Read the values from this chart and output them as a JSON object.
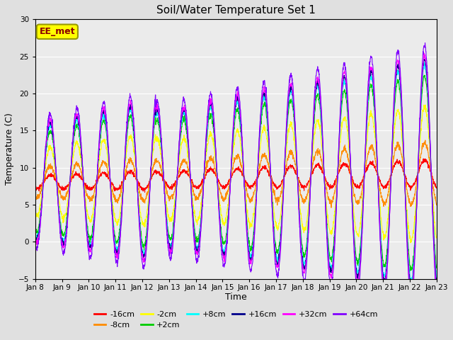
{
  "title": "Soil/Water Temperature Set 1",
  "xlabel": "Time",
  "ylabel": "Temperature (C)",
  "ylim": [
    -5,
    30
  ],
  "yticks": [
    -5,
    0,
    5,
    10,
    15,
    20,
    25,
    30
  ],
  "xtick_labels": [
    "Jan 8",
    "Jan 9",
    "Jan 10",
    "Jan 11",
    "Jan 12",
    "Jan 13",
    "Jan 14",
    "Jan 15",
    "Jan 16",
    "Jan 17",
    "Jan 18",
    "Jan 19",
    "Jan 20",
    "Jan 21",
    "Jan 22",
    "Jan 23"
  ],
  "annotation_text": "EE_met",
  "annotation_color": "#8B0000",
  "annotation_bg": "#FFFF00",
  "annotation_edge": "#999900",
  "series": [
    {
      "label": "-16cm",
      "color": "#FF0000"
    },
    {
      "label": "-8cm",
      "color": "#FF8C00"
    },
    {
      "label": "-2cm",
      "color": "#FFFF00"
    },
    {
      "label": "+2cm",
      "color": "#00CC00"
    },
    {
      "label": "+8cm",
      "color": "#00FFFF"
    },
    {
      "label": "+16cm",
      "color": "#00008B"
    },
    {
      "label": "+32cm",
      "color": "#FF00FF"
    },
    {
      "label": "+64cm",
      "color": "#8000FF"
    }
  ],
  "bg_color": "#E0E0E0",
  "plot_bg": "#EBEBEB",
  "grid_color": "#FFFFFF",
  "n_days": 15,
  "pts_per_day": 144
}
